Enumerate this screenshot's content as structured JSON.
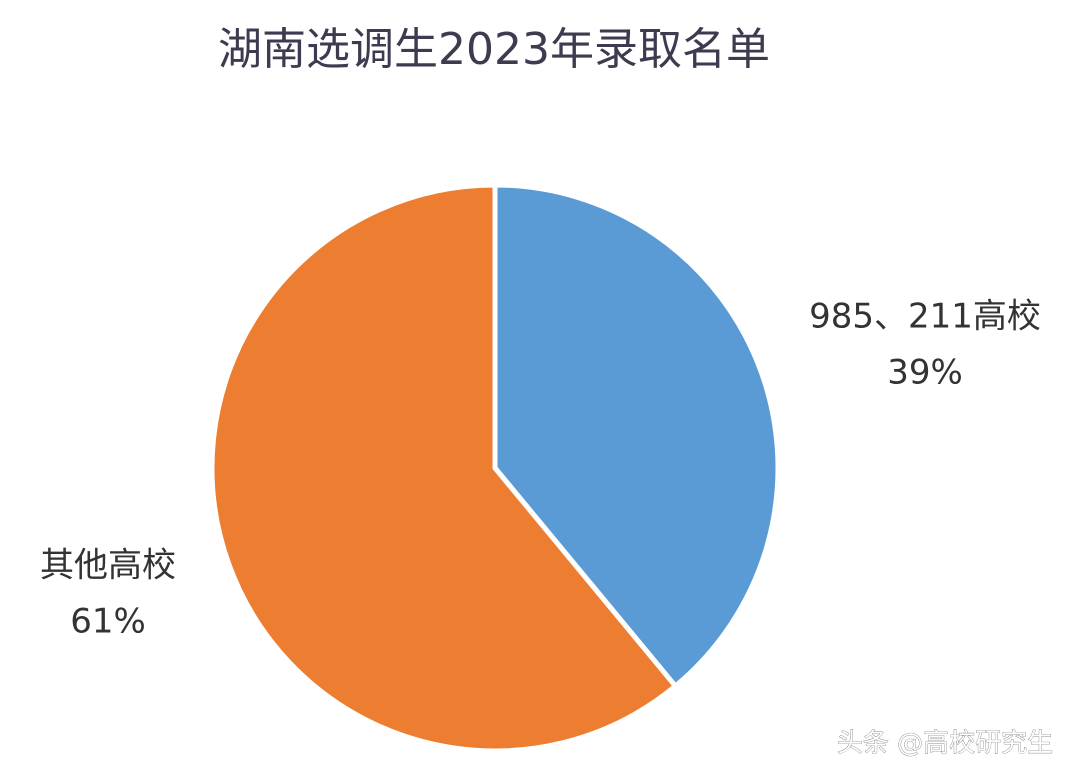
{
  "chart_data": {
    "type": "pie",
    "title": "湖南选调生2023年录取名单",
    "categories": [
      "985、211高校",
      "其他高校"
    ],
    "values": [
      39,
      61
    ],
    "value_labels": [
      "39%",
      "61%"
    ],
    "colors": [
      "#5b9bd5",
      "#ed7d31"
    ]
  },
  "watermark": "头条 @高校研究生"
}
